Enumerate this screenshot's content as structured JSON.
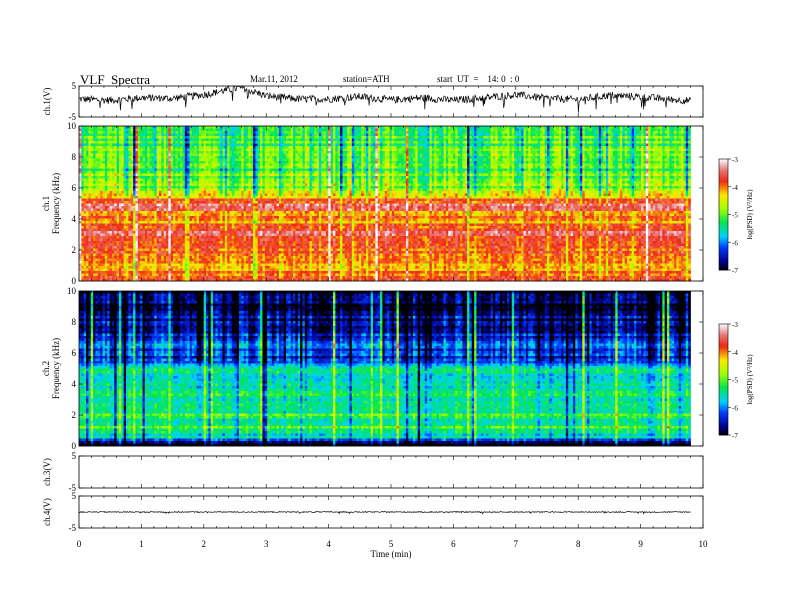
{
  "header": {
    "title": "VLF  Spectra",
    "date": "Mar.11, 2012",
    "station": "station=ATH",
    "start": "start  UT  =    14: 0  : 0"
  },
  "chart_data": [
    {
      "type": "line",
      "panel": "ch1-waveform",
      "ylabel": "ch.1(V)",
      "ylim": [
        -5,
        5
      ],
      "yticks": [
        "5",
        "-5"
      ],
      "xlim": [
        0,
        10
      ],
      "x_data_end": 9.8,
      "level_profile": [
        {
          "x": 0.0,
          "y": 0.8
        },
        {
          "x": 0.5,
          "y": 0.4
        },
        {
          "x": 1.0,
          "y": 1.2
        },
        {
          "x": 1.5,
          "y": 1.0
        },
        {
          "x": 2.0,
          "y": 2.2
        },
        {
          "x": 2.4,
          "y": 3.8
        },
        {
          "x": 2.6,
          "y": 4.5
        },
        {
          "x": 3.0,
          "y": 1.8
        },
        {
          "x": 3.5,
          "y": 0.8
        },
        {
          "x": 4.0,
          "y": 0.8
        },
        {
          "x": 4.5,
          "y": 1.6
        },
        {
          "x": 5.0,
          "y": 0.5
        },
        {
          "x": 5.5,
          "y": 1.2
        },
        {
          "x": 6.0,
          "y": 0.4
        },
        {
          "x": 6.5,
          "y": 1.2
        },
        {
          "x": 7.0,
          "y": 2.2
        },
        {
          "x": 7.5,
          "y": 1.0
        },
        {
          "x": 8.0,
          "y": 0.6
        },
        {
          "x": 8.5,
          "y": 2.0
        },
        {
          "x": 9.0,
          "y": 1.5
        },
        {
          "x": 9.5,
          "y": 0.6
        },
        {
          "x": 9.8,
          "y": 0.3
        }
      ],
      "noise_amplitude": 1.2
    },
    {
      "type": "heatmap",
      "panel": "ch1-spectrogram",
      "ylabel_channel": "ch.1",
      "ylabel": "Frequency  (kHz)",
      "ylim": [
        0,
        10
      ],
      "yticks": [
        "0",
        "2",
        "4",
        "6",
        "8",
        "10"
      ],
      "xlim": [
        0,
        10
      ],
      "x_data_end": 9.8,
      "colorbar": {
        "label": "log(PSD) (V²/Hz)",
        "range": [
          -7,
          -3
        ],
        "ticks": [
          "-3",
          "-4",
          "-5",
          "-6",
          "-7"
        ]
      },
      "band_profile": [
        {
          "f": 0.2,
          "v": -3.6
        },
        {
          "f": 0.6,
          "v": -3.9
        },
        {
          "f": 1.0,
          "v": -4.2
        },
        {
          "f": 1.5,
          "v": -3.9
        },
        {
          "f": 2.0,
          "v": -3.8
        },
        {
          "f": 2.5,
          "v": -3.7
        },
        {
          "f": 3.0,
          "v": -3.5
        },
        {
          "f": 3.5,
          "v": -3.7
        },
        {
          "f": 4.0,
          "v": -4.2
        },
        {
          "f": 4.5,
          "v": -3.8
        },
        {
          "f": 5.0,
          "v": -3.5
        },
        {
          "f": 5.5,
          "v": -4.4
        },
        {
          "f": 6.0,
          "v": -4.9
        },
        {
          "f": 6.5,
          "v": -4.8
        },
        {
          "f": 7.0,
          "v": -5.0
        },
        {
          "f": 8.0,
          "v": -5.1
        },
        {
          "f": 9.0,
          "v": -5.1
        },
        {
          "f": 10.0,
          "v": -5.2
        }
      ]
    },
    {
      "type": "heatmap",
      "panel": "ch2-spectrogram",
      "ylabel_channel": "ch.2",
      "ylabel": "Frequency  (kHz)",
      "ylim": [
        0,
        10
      ],
      "yticks": [
        "0",
        "2",
        "4",
        "6",
        "8",
        "10"
      ],
      "xlim": [
        0,
        10
      ],
      "x_data_end": 9.8,
      "colorbar": {
        "label": "log(PSD) (V²/Hz)",
        "range": [
          -7,
          -3
        ],
        "ticks": [
          "-3",
          "-4",
          "-5",
          "-6",
          "-7"
        ]
      },
      "band_profile": [
        {
          "f": 0.2,
          "v": -6.9
        },
        {
          "f": 0.5,
          "v": -5.6
        },
        {
          "f": 1.0,
          "v": -5.2
        },
        {
          "f": 2.0,
          "v": -5.3
        },
        {
          "f": 3.0,
          "v": -5.5
        },
        {
          "f": 4.0,
          "v": -5.4
        },
        {
          "f": 5.0,
          "v": -5.5
        },
        {
          "f": 5.5,
          "v": -6.4
        },
        {
          "f": 6.5,
          "v": -6.0
        },
        {
          "f": 7.0,
          "v": -6.3
        },
        {
          "f": 8.0,
          "v": -6.6
        },
        {
          "f": 9.0,
          "v": -6.8
        },
        {
          "f": 10.0,
          "v": -6.9
        }
      ]
    },
    {
      "type": "line",
      "panel": "ch3-waveform",
      "ylabel": "ch.3(V)",
      "ylim": [
        -5,
        5
      ],
      "yticks": [
        "5",
        "-5"
      ],
      "xlim": [
        0,
        10
      ],
      "trace": "none"
    },
    {
      "type": "line",
      "panel": "ch4-waveform",
      "ylabel": "ch.4(V)",
      "ylim": [
        -5,
        5
      ],
      "yticks": [
        "5",
        "-5"
      ],
      "xlim": [
        0,
        10
      ],
      "x_data_end": 9.8,
      "level_profile": [
        {
          "x": 0.0,
          "y": 0.0
        },
        {
          "x": 9.8,
          "y": 0.0
        }
      ],
      "noise_amplitude": 0.15
    }
  ],
  "x_axis": {
    "label": "Time  (min)",
    "ticks": [
      "0",
      "1",
      "2",
      "3",
      "4",
      "5",
      "6",
      "7",
      "8",
      "9",
      "10"
    ]
  }
}
